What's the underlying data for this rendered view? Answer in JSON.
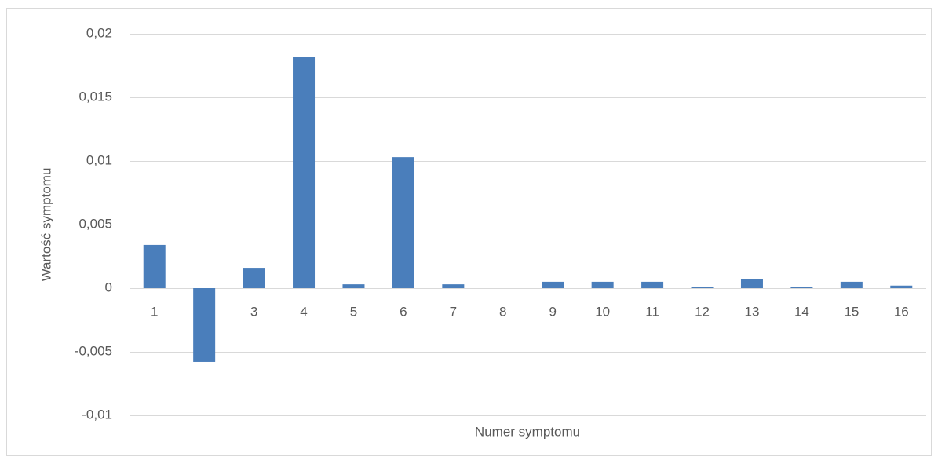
{
  "chart_data": {
    "type": "bar",
    "x_label": "Numer symptomu",
    "y_label": "Wartość symptomu",
    "categories": [
      "1",
      "2",
      "3",
      "4",
      "5",
      "6",
      "7",
      "8",
      "9",
      "10",
      "11",
      "12",
      "13",
      "14",
      "15",
      "16"
    ],
    "values": [
      0.0034,
      -0.0058,
      0.0016,
      0.0182,
      0.0003,
      0.0103,
      0.0003,
      0,
      0.0005,
      0.0005,
      0.0005,
      0.0001,
      0.0007,
      0.0001,
      0.0005,
      0.0002
    ],
    "color": "#4a7ebb",
    "ylim": [
      -0.01,
      0.02
    ],
    "yticks": [
      {
        "value": -0.01,
        "label": "-0,01"
      },
      {
        "value": -0.005,
        "label": "-0,005"
      },
      0,
      {
        "value": 0.005,
        "label": "0,005"
      },
      {
        "value": 0.01,
        "label": "0,01"
      },
      {
        "value": 0.015,
        "label": "0,015"
      },
      {
        "value": 0.02,
        "label": "0,02"
      }
    ],
    "grid": true
  }
}
